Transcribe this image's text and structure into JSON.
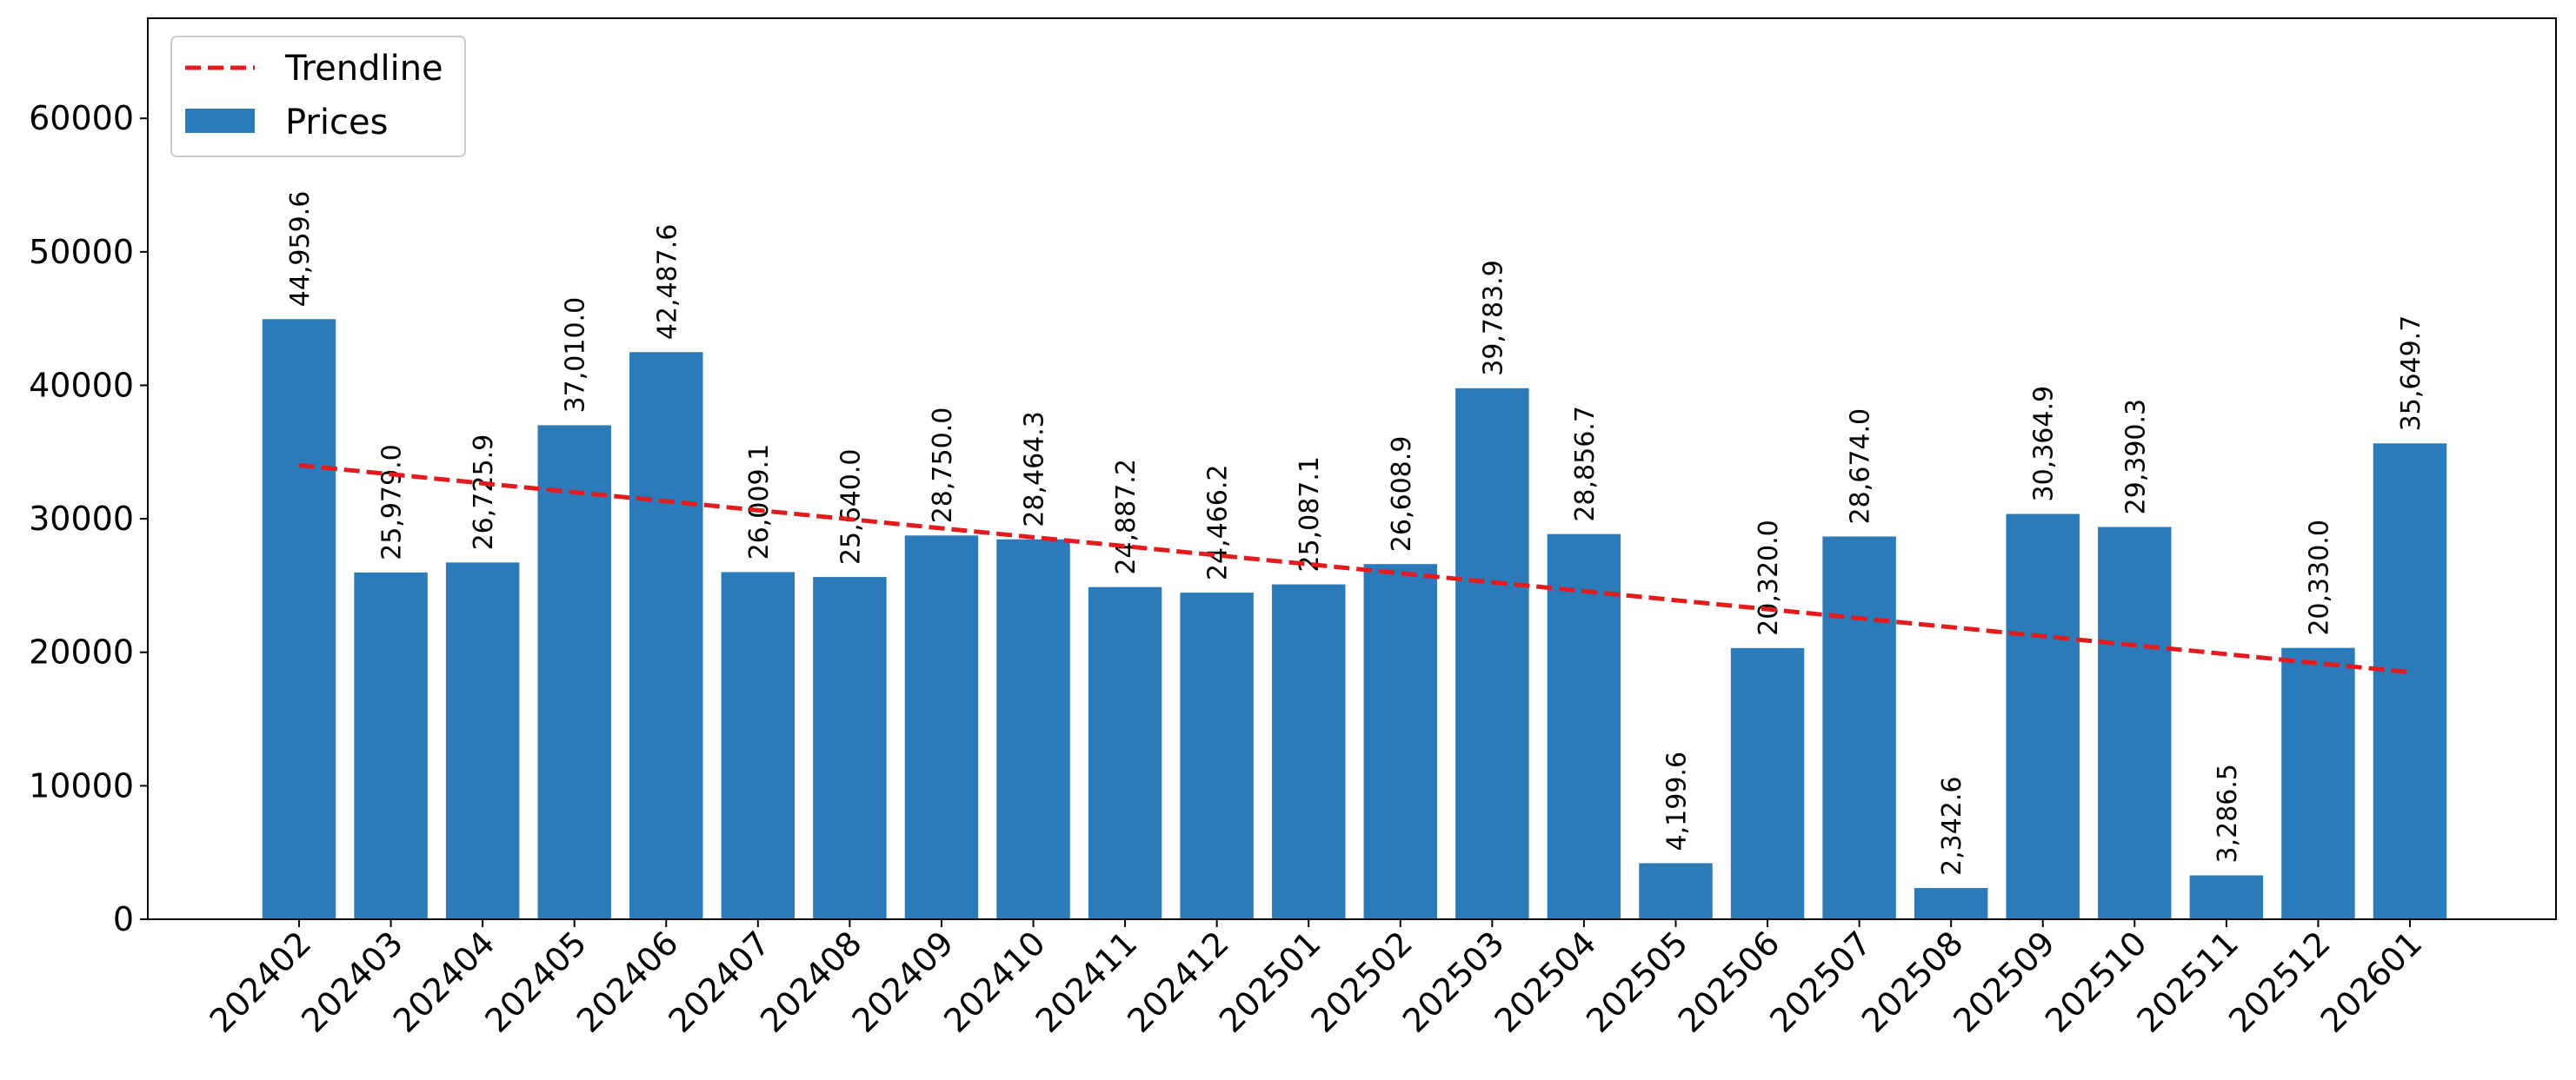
{
  "chart_data": {
    "type": "bar",
    "categories": [
      "202402",
      "202403",
      "202404",
      "202405",
      "202406",
      "202407",
      "202408",
      "202409",
      "202410",
      "202411",
      "202412",
      "202501",
      "202502",
      "202503",
      "202504",
      "202505",
      "202506",
      "202507",
      "202508",
      "202509",
      "202510",
      "202511",
      "202512",
      "202601"
    ],
    "series": [
      {
        "name": "Trendline",
        "type": "line",
        "color": "#e41a1c",
        "dashed": true,
        "values": [
          34010,
          33340,
          32660,
          31990,
          31320,
          30640,
          29970,
          29290,
          28620,
          27950,
          27270,
          26600,
          25920,
          25250,
          24580,
          23900,
          23230,
          22550,
          21880,
          21210,
          20530,
          19860,
          19180,
          18510
        ]
      },
      {
        "name": "Prices",
        "type": "bar",
        "color": "#2b7bba",
        "values": [
          44959.6,
          25979.0,
          26725.9,
          37010.0,
          42487.6,
          26009.1,
          25640.0,
          28750.0,
          28464.3,
          24887.2,
          24466.2,
          25087.1,
          26608.9,
          39783.9,
          28856.7,
          4199.6,
          20320.0,
          28674.0,
          2342.6,
          30364.9,
          29390.3,
          3286.5,
          20330.0,
          35649.7
        ],
        "value_labels": [
          "44,959.6",
          "25,979.0",
          "26,725.9",
          "37,010.0",
          "42,487.6",
          "26,009.1",
          "25,640.0",
          "28,750.0",
          "28,464.3",
          "24,887.2",
          "24,466.2",
          "25,087.1",
          "26,608.9",
          "39,783.9",
          "28,856.7",
          "4,199.6",
          "20,320.0",
          "28,674.0",
          "2,342.6",
          "30,364.9",
          "29,390.3",
          "3,286.5",
          "20,330.0",
          "35,649.7"
        ]
      }
    ],
    "ylim": [
      0,
      67500
    ],
    "yticks": [
      0,
      10000,
      20000,
      30000,
      40000,
      50000,
      60000
    ],
    "legend": "upper left"
  }
}
